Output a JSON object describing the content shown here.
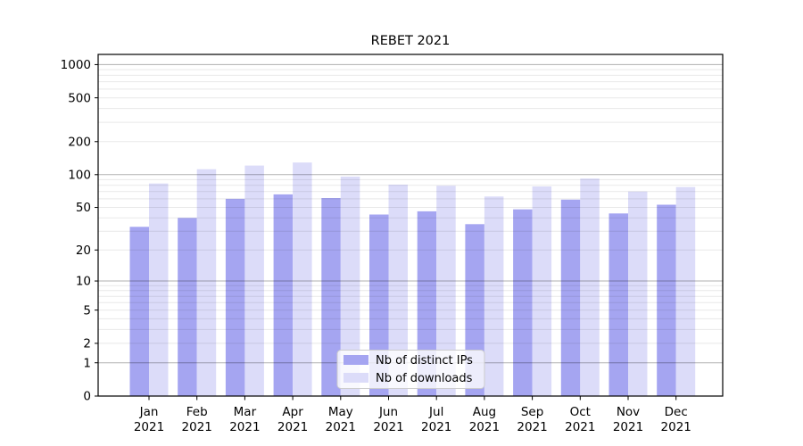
{
  "figure": {
    "title": "REBET 2021",
    "background": "#ffffff"
  },
  "legend": {
    "entries": [
      {
        "label": "Nb of distinct IPs",
        "swatch_color": "#a5a5f1"
      },
      {
        "label": "Nb of downloads",
        "swatch_color": "#dcdcf9"
      }
    ]
  },
  "chart_data": {
    "type": "bar",
    "title": "REBET 2021",
    "categories": [
      "Jan 2021",
      "Feb 2021",
      "Mar 2021",
      "Apr 2021",
      "May 2021",
      "Jun 2021",
      "Jul 2021",
      "Aug 2021",
      "Sep 2021",
      "Oct 2021",
      "Nov 2021",
      "Dec 2021"
    ],
    "series": [
      {
        "name": "Nb of distinct IPs",
        "color": "#a5a5f1",
        "values": [
          33,
          40,
          60,
          66,
          61,
          43,
          46,
          35,
          48,
          59,
          44,
          53
        ]
      },
      {
        "name": "Nb of downloads",
        "color": "#dcdcf9",
        "values": [
          83,
          112,
          121,
          129,
          96,
          81,
          79,
          63,
          78,
          92,
          70,
          77
        ]
      }
    ],
    "xlabel": "",
    "ylabel": "",
    "yscale": "log1p",
    "y_ticks": [
      1000,
      500,
      200,
      100,
      50,
      20,
      10,
      5,
      2,
      1,
      0
    ],
    "y_major_gridlines": [
      1,
      10,
      100,
      1000
    ],
    "ylim": [
      0,
      1237
    ],
    "grid": true,
    "legend_position": "lower center",
    "colors": {
      "major_grid": "rgba(0,0,0,0.31)",
      "minor_grid": "rgba(0,0,0,0.09)",
      "spine": "#000000",
      "text": "#000000",
      "legend_bg": "rgba(255,255,255,0.8)",
      "legend_border": "#cccccc"
    }
  }
}
